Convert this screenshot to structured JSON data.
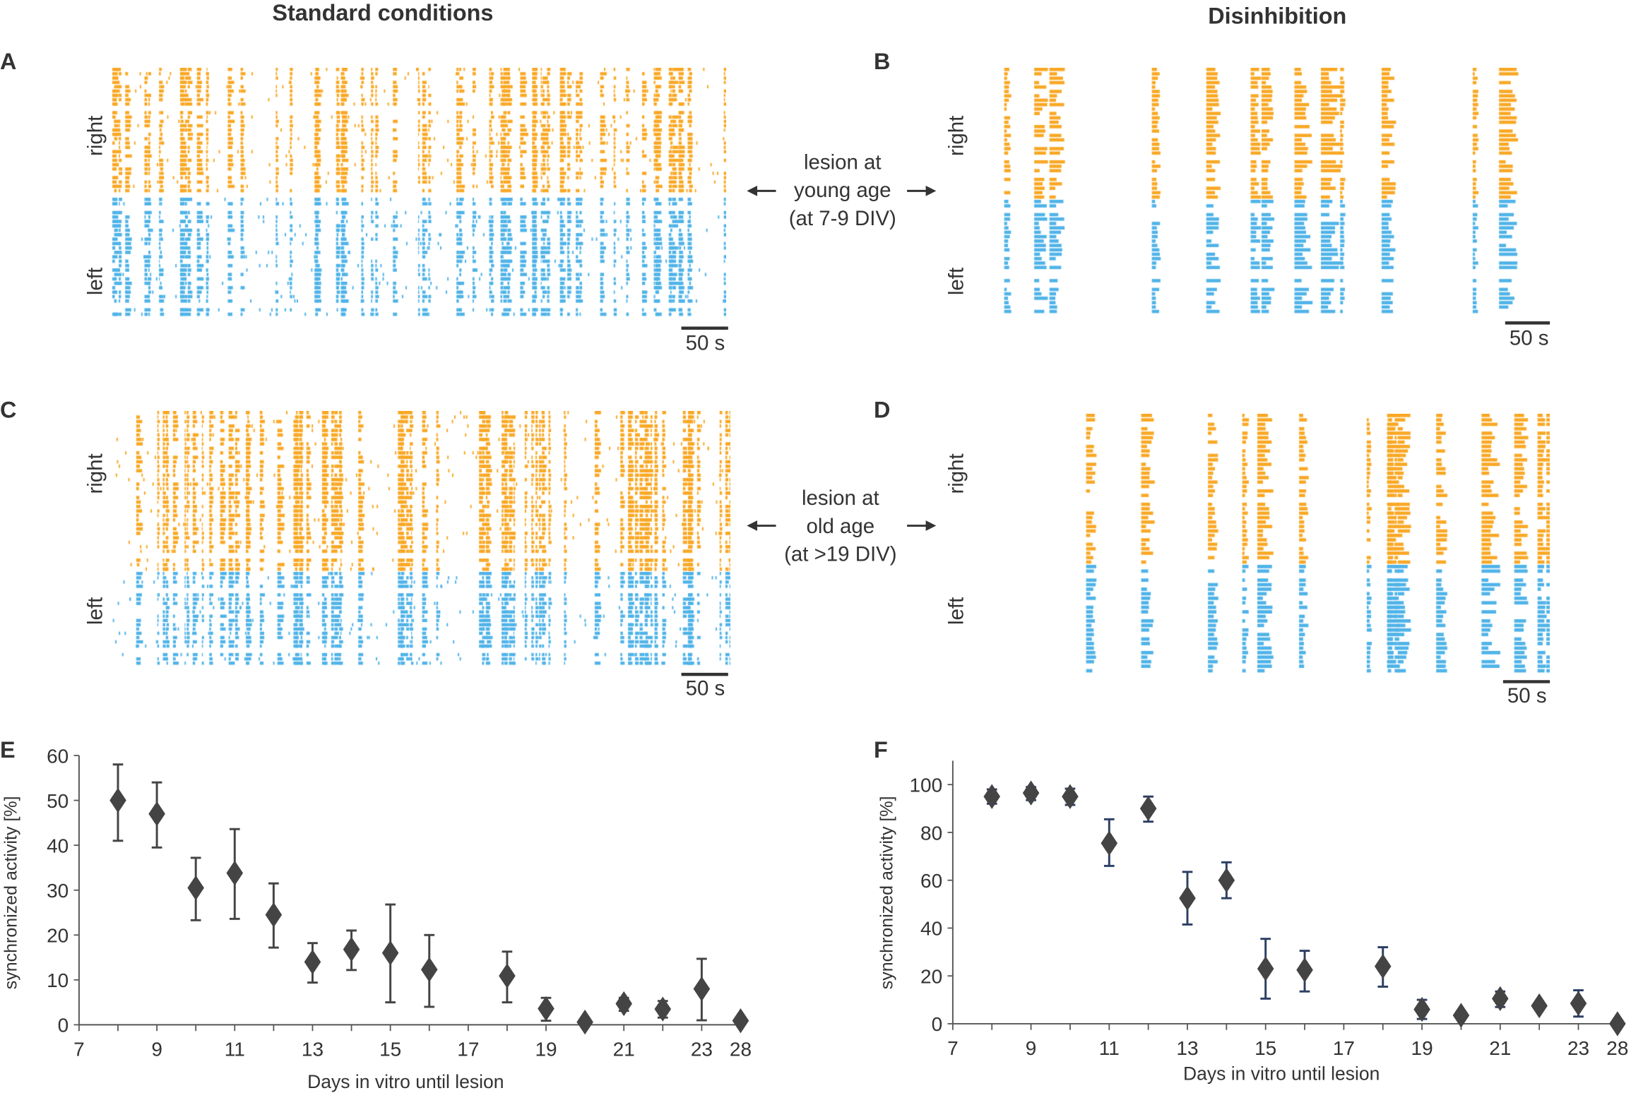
{
  "headings": {
    "left": "Standard conditions",
    "right": "Disinhibition"
  },
  "panels": {
    "A": {
      "letter": "A",
      "top_label": "right",
      "bottom_label": "left",
      "scale_bar": "50 s"
    },
    "B": {
      "letter": "B",
      "top_label": "right",
      "bottom_label": "left",
      "scale_bar": "50 s"
    },
    "C": {
      "letter": "C",
      "top_label": "right",
      "bottom_label": "left",
      "scale_bar": "50 s"
    },
    "D": {
      "letter": "D",
      "top_label": "right",
      "bottom_label": "left",
      "scale_bar": "50 s"
    }
  },
  "annotations": {
    "young": [
      "lesion at",
      "young age",
      "(at 7-9 DIV)"
    ],
    "old": [
      "lesion at",
      "old age",
      "(at >19 DIV)"
    ]
  },
  "colors": {
    "right_hemisphere": "#f9a825",
    "left_hemisphere": "#4fb3e8",
    "marker": "#444444",
    "errorbar_E": "#444444",
    "errorbar_F": "#2c3e63"
  },
  "chart_data": [
    {
      "panel": "E",
      "type": "scatter",
      "letter": "E",
      "xlabel": "Days in vitro until lesion",
      "ylabel": "synchronized activity [%]",
      "categories": [
        "7",
        "8",
        "9",
        "10",
        "11",
        "12",
        "13",
        "14",
        "15",
        "16",
        "17",
        "18",
        "19",
        "20",
        "21",
        "22",
        "23",
        "28"
      ],
      "x_tick_labels": [
        "7",
        "9",
        "11",
        "13",
        "15",
        "17",
        "19",
        "21",
        "23",
        "28"
      ],
      "y_ticks": [
        0,
        10,
        20,
        30,
        40,
        50,
        60
      ],
      "ylim": [
        0,
        60
      ],
      "marker": "diamond",
      "points": [
        {
          "x": "8",
          "y": 50,
          "lo": 41,
          "hi": 58
        },
        {
          "x": "9",
          "y": 47,
          "lo": 39.5,
          "hi": 54
        },
        {
          "x": "10",
          "y": 30.5,
          "lo": 23.3,
          "hi": 37.2
        },
        {
          "x": "11",
          "y": 33.8,
          "lo": 23.6,
          "hi": 43.6
        },
        {
          "x": "12",
          "y": 24.5,
          "lo": 17.2,
          "hi": 31.5
        },
        {
          "x": "13",
          "y": 14,
          "lo": 9.4,
          "hi": 18.2
        },
        {
          "x": "14",
          "y": 16.8,
          "lo": 12.2,
          "hi": 21
        },
        {
          "x": "15",
          "y": 16,
          "lo": 5,
          "hi": 26.8
        },
        {
          "x": "16",
          "y": 12.3,
          "lo": 4,
          "hi": 20
        },
        {
          "x": "18",
          "y": 10.9,
          "lo": 5,
          "hi": 16.3
        },
        {
          "x": "19",
          "y": 3.6,
          "lo": 0.9,
          "hi": 6
        },
        {
          "x": "20",
          "y": 0.6,
          "lo": null,
          "hi": null
        },
        {
          "x": "21",
          "y": 4.7,
          "lo": 3.1,
          "hi": 6
        },
        {
          "x": "22",
          "y": 3.5,
          "lo": 1.6,
          "hi": 5.3
        },
        {
          "x": "23",
          "y": 8,
          "lo": 1,
          "hi": 14.7
        },
        {
          "x": "28",
          "y": 0.9,
          "lo": null,
          "hi": null
        }
      ]
    },
    {
      "panel": "F",
      "type": "scatter",
      "letter": "F",
      "xlabel": "Days in vitro until lesion",
      "ylabel": "synchronized activity [%]",
      "categories": [
        "7",
        "8",
        "9",
        "10",
        "11",
        "12",
        "13",
        "14",
        "15",
        "16",
        "17",
        "18",
        "19",
        "20",
        "21",
        "22",
        "23",
        "28"
      ],
      "x_tick_labels": [
        "7",
        "9",
        "11",
        "13",
        "15",
        "17",
        "19",
        "21",
        "23",
        "28"
      ],
      "y_ticks": [
        0,
        20,
        40,
        60,
        80,
        100
      ],
      "ylim": [
        0,
        110
      ],
      "marker": "diamond",
      "points": [
        {
          "x": "8",
          "y": 95,
          "lo": 92,
          "hi": 98
        },
        {
          "x": "9",
          "y": 96.5,
          "lo": 93.5,
          "hi": 99
        },
        {
          "x": "10",
          "y": 95,
          "lo": 91.5,
          "hi": 98.3
        },
        {
          "x": "11",
          "y": 75.5,
          "lo": 66,
          "hi": 85.5
        },
        {
          "x": "12",
          "y": 90,
          "lo": 84.5,
          "hi": 95
        },
        {
          "x": "13",
          "y": 52.5,
          "lo": 41.5,
          "hi": 63.5
        },
        {
          "x": "14",
          "y": 60,
          "lo": 52.5,
          "hi": 67.5
        },
        {
          "x": "15",
          "y": 23,
          "lo": 10.5,
          "hi": 35.5
        },
        {
          "x": "16",
          "y": 22.5,
          "lo": 13.5,
          "hi": 30.5
        },
        {
          "x": "18",
          "y": 24,
          "lo": 15.5,
          "hi": 32
        },
        {
          "x": "19",
          "y": 6,
          "lo": 2,
          "hi": 10
        },
        {
          "x": "20",
          "y": 3.5,
          "lo": null,
          "hi": null
        },
        {
          "x": "21",
          "y": 10.5,
          "lo": 7,
          "hi": 13.5
        },
        {
          "x": "22",
          "y": 7.5,
          "lo": null,
          "hi": null
        },
        {
          "x": "23",
          "y": 8.5,
          "lo": 3,
          "hi": 14
        },
        {
          "x": "28",
          "y": 0,
          "lo": null,
          "hi": null
        }
      ]
    }
  ]
}
